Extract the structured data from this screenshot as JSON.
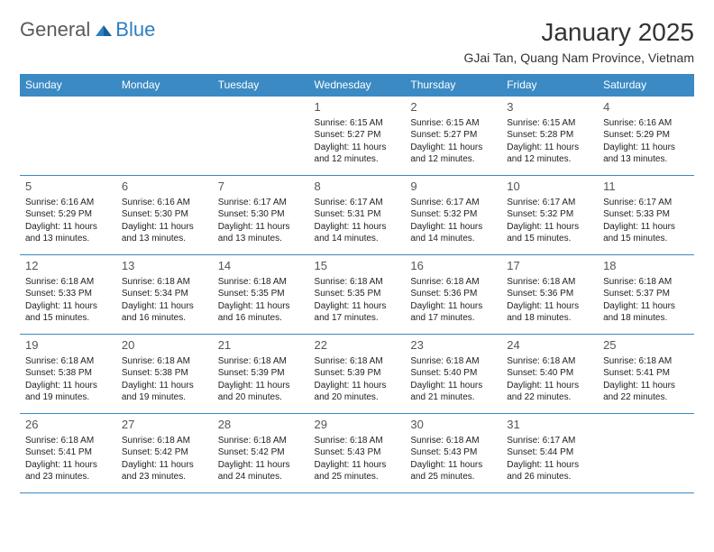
{
  "logo": {
    "general": "General",
    "blue": "Blue"
  },
  "title": "January 2025",
  "subtitle": "GJai Tan, Quang Nam Province, Vietnam",
  "colors": {
    "header_bg": "#3b8ac4",
    "header_fg": "#ffffff",
    "border": "#3b8ac4",
    "logo_gray": "#5a5a5a",
    "logo_blue": "#2f7fc1"
  },
  "weekdays": [
    "Sunday",
    "Monday",
    "Tuesday",
    "Wednesday",
    "Thursday",
    "Friday",
    "Saturday"
  ],
  "weeks": [
    [
      null,
      null,
      null,
      {
        "n": "1",
        "sr": "Sunrise: 6:15 AM",
        "ss": "Sunset: 5:27 PM",
        "d1": "Daylight: 11 hours",
        "d2": "and 12 minutes."
      },
      {
        "n": "2",
        "sr": "Sunrise: 6:15 AM",
        "ss": "Sunset: 5:27 PM",
        "d1": "Daylight: 11 hours",
        "d2": "and 12 minutes."
      },
      {
        "n": "3",
        "sr": "Sunrise: 6:15 AM",
        "ss": "Sunset: 5:28 PM",
        "d1": "Daylight: 11 hours",
        "d2": "and 12 minutes."
      },
      {
        "n": "4",
        "sr": "Sunrise: 6:16 AM",
        "ss": "Sunset: 5:29 PM",
        "d1": "Daylight: 11 hours",
        "d2": "and 13 minutes."
      }
    ],
    [
      {
        "n": "5",
        "sr": "Sunrise: 6:16 AM",
        "ss": "Sunset: 5:29 PM",
        "d1": "Daylight: 11 hours",
        "d2": "and 13 minutes."
      },
      {
        "n": "6",
        "sr": "Sunrise: 6:16 AM",
        "ss": "Sunset: 5:30 PM",
        "d1": "Daylight: 11 hours",
        "d2": "and 13 minutes."
      },
      {
        "n": "7",
        "sr": "Sunrise: 6:17 AM",
        "ss": "Sunset: 5:30 PM",
        "d1": "Daylight: 11 hours",
        "d2": "and 13 minutes."
      },
      {
        "n": "8",
        "sr": "Sunrise: 6:17 AM",
        "ss": "Sunset: 5:31 PM",
        "d1": "Daylight: 11 hours",
        "d2": "and 14 minutes."
      },
      {
        "n": "9",
        "sr": "Sunrise: 6:17 AM",
        "ss": "Sunset: 5:32 PM",
        "d1": "Daylight: 11 hours",
        "d2": "and 14 minutes."
      },
      {
        "n": "10",
        "sr": "Sunrise: 6:17 AM",
        "ss": "Sunset: 5:32 PM",
        "d1": "Daylight: 11 hours",
        "d2": "and 15 minutes."
      },
      {
        "n": "11",
        "sr": "Sunrise: 6:17 AM",
        "ss": "Sunset: 5:33 PM",
        "d1": "Daylight: 11 hours",
        "d2": "and 15 minutes."
      }
    ],
    [
      {
        "n": "12",
        "sr": "Sunrise: 6:18 AM",
        "ss": "Sunset: 5:33 PM",
        "d1": "Daylight: 11 hours",
        "d2": "and 15 minutes."
      },
      {
        "n": "13",
        "sr": "Sunrise: 6:18 AM",
        "ss": "Sunset: 5:34 PM",
        "d1": "Daylight: 11 hours",
        "d2": "and 16 minutes."
      },
      {
        "n": "14",
        "sr": "Sunrise: 6:18 AM",
        "ss": "Sunset: 5:35 PM",
        "d1": "Daylight: 11 hours",
        "d2": "and 16 minutes."
      },
      {
        "n": "15",
        "sr": "Sunrise: 6:18 AM",
        "ss": "Sunset: 5:35 PM",
        "d1": "Daylight: 11 hours",
        "d2": "and 17 minutes."
      },
      {
        "n": "16",
        "sr": "Sunrise: 6:18 AM",
        "ss": "Sunset: 5:36 PM",
        "d1": "Daylight: 11 hours",
        "d2": "and 17 minutes."
      },
      {
        "n": "17",
        "sr": "Sunrise: 6:18 AM",
        "ss": "Sunset: 5:36 PM",
        "d1": "Daylight: 11 hours",
        "d2": "and 18 minutes."
      },
      {
        "n": "18",
        "sr": "Sunrise: 6:18 AM",
        "ss": "Sunset: 5:37 PM",
        "d1": "Daylight: 11 hours",
        "d2": "and 18 minutes."
      }
    ],
    [
      {
        "n": "19",
        "sr": "Sunrise: 6:18 AM",
        "ss": "Sunset: 5:38 PM",
        "d1": "Daylight: 11 hours",
        "d2": "and 19 minutes."
      },
      {
        "n": "20",
        "sr": "Sunrise: 6:18 AM",
        "ss": "Sunset: 5:38 PM",
        "d1": "Daylight: 11 hours",
        "d2": "and 19 minutes."
      },
      {
        "n": "21",
        "sr": "Sunrise: 6:18 AM",
        "ss": "Sunset: 5:39 PM",
        "d1": "Daylight: 11 hours",
        "d2": "and 20 minutes."
      },
      {
        "n": "22",
        "sr": "Sunrise: 6:18 AM",
        "ss": "Sunset: 5:39 PM",
        "d1": "Daylight: 11 hours",
        "d2": "and 20 minutes."
      },
      {
        "n": "23",
        "sr": "Sunrise: 6:18 AM",
        "ss": "Sunset: 5:40 PM",
        "d1": "Daylight: 11 hours",
        "d2": "and 21 minutes."
      },
      {
        "n": "24",
        "sr": "Sunrise: 6:18 AM",
        "ss": "Sunset: 5:40 PM",
        "d1": "Daylight: 11 hours",
        "d2": "and 22 minutes."
      },
      {
        "n": "25",
        "sr": "Sunrise: 6:18 AM",
        "ss": "Sunset: 5:41 PM",
        "d1": "Daylight: 11 hours",
        "d2": "and 22 minutes."
      }
    ],
    [
      {
        "n": "26",
        "sr": "Sunrise: 6:18 AM",
        "ss": "Sunset: 5:41 PM",
        "d1": "Daylight: 11 hours",
        "d2": "and 23 minutes."
      },
      {
        "n": "27",
        "sr": "Sunrise: 6:18 AM",
        "ss": "Sunset: 5:42 PM",
        "d1": "Daylight: 11 hours",
        "d2": "and 23 minutes."
      },
      {
        "n": "28",
        "sr": "Sunrise: 6:18 AM",
        "ss": "Sunset: 5:42 PM",
        "d1": "Daylight: 11 hours",
        "d2": "and 24 minutes."
      },
      {
        "n": "29",
        "sr": "Sunrise: 6:18 AM",
        "ss": "Sunset: 5:43 PM",
        "d1": "Daylight: 11 hours",
        "d2": "and 25 minutes."
      },
      {
        "n": "30",
        "sr": "Sunrise: 6:18 AM",
        "ss": "Sunset: 5:43 PM",
        "d1": "Daylight: 11 hours",
        "d2": "and 25 minutes."
      },
      {
        "n": "31",
        "sr": "Sunrise: 6:17 AM",
        "ss": "Sunset: 5:44 PM",
        "d1": "Daylight: 11 hours",
        "d2": "and 26 minutes."
      },
      null
    ]
  ]
}
